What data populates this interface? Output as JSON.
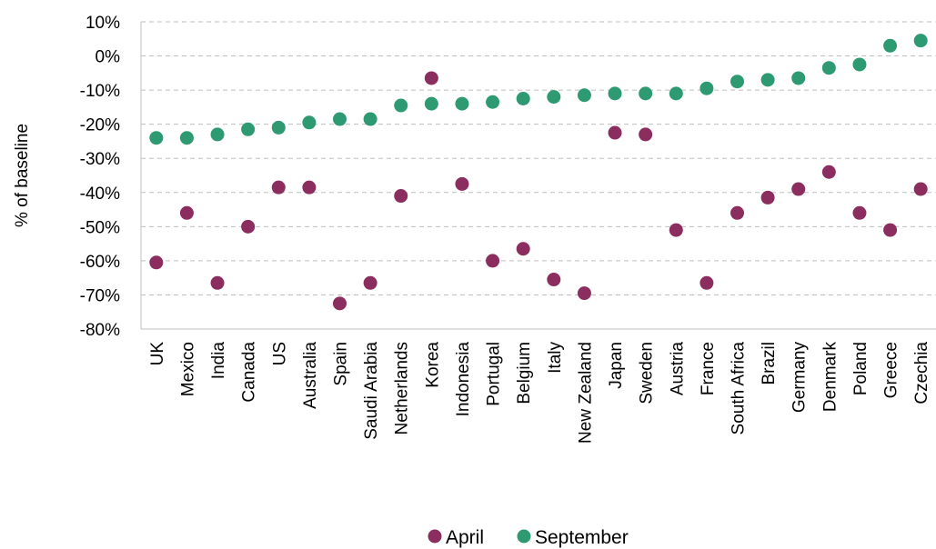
{
  "chart_data": {
    "type": "scatter",
    "title": "",
    "xlabel": "",
    "ylabel": "% of baseline",
    "ylim": [
      -80,
      10
    ],
    "yticks": [
      10,
      0,
      -10,
      -20,
      -30,
      -40,
      -50,
      -60,
      -70,
      -80
    ],
    "ytick_labels": [
      "10%",
      "0%",
      "-10%",
      "-20%",
      "-30%",
      "-40%",
      "-50%",
      "-60%",
      "-70%",
      "-80%"
    ],
    "grid": true,
    "legend_position": "bottom",
    "categories": [
      "UK",
      "Mexico",
      "India",
      "Canada",
      "US",
      "Australia",
      "Spain",
      "Saudi Arabia",
      "Netherlands",
      "Korea",
      "Indonesia",
      "Portugal",
      "Belgium",
      "Italy",
      "New Zealand",
      "Japan",
      "Sweden",
      "Austria",
      "France",
      "South Africa",
      "Brazil",
      "Germany",
      "Denmark",
      "Poland",
      "Greece",
      "Czechia"
    ],
    "series": [
      {
        "name": "April",
        "color": "#8b2e5f",
        "values": [
          -60.5,
          -46,
          -66.5,
          -50,
          -38.5,
          -38.5,
          -72.5,
          -66.5,
          -41,
          -6.5,
          -37.5,
          -60,
          -56.5,
          -65.5,
          -69.5,
          -22.5,
          -23,
          -51,
          -66.5,
          -46,
          -41.5,
          -39,
          -34,
          -46,
          -51,
          -39
        ]
      },
      {
        "name": "September",
        "color": "#2e9a72",
        "values": [
          -24,
          -24,
          -23,
          -21.5,
          -21,
          -19.5,
          -18.5,
          -18.5,
          -14.5,
          -14,
          -14,
          -13.5,
          -12.5,
          -12,
          -11.5,
          -11,
          -11,
          -11,
          -9.5,
          -7.5,
          -7,
          -6.5,
          -3.5,
          -2.5,
          3,
          4.5
        ]
      }
    ]
  }
}
